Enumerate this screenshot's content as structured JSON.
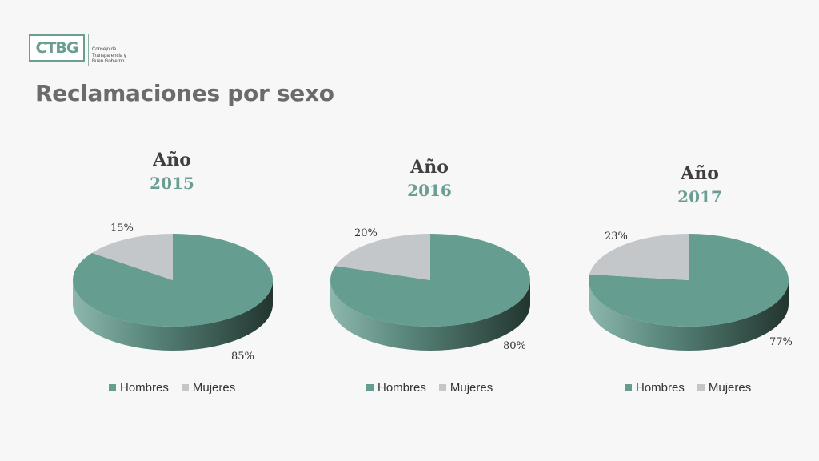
{
  "logo": {
    "letters": "CTBG",
    "lines": [
      "Consejo de",
      "Transparencia y",
      "Buen Gobierno"
    ]
  },
  "page_title": "Reclamaciones por sexo",
  "colors": {
    "hombres": "#669d91",
    "mujeres": "#c3c7c9"
  },
  "chart_data": [
    {
      "type": "pie",
      "title": "Año",
      "subtitle": "2015",
      "categories": [
        "Hombres",
        "Mujeres"
      ],
      "values": [
        85,
        15
      ],
      "labels": [
        "85%",
        "15%"
      ],
      "legend": "bottom"
    },
    {
      "type": "pie",
      "title": "Año",
      "subtitle": "2016",
      "categories": [
        "Hombres",
        "Mujeres"
      ],
      "values": [
        80,
        20
      ],
      "labels": [
        "80%",
        "20%"
      ],
      "legend": "bottom"
    },
    {
      "type": "pie",
      "title": "Año",
      "subtitle": "2017",
      "categories": [
        "Hombres",
        "Mujeres"
      ],
      "values": [
        77,
        23
      ],
      "labels": [
        "77%",
        "23%"
      ],
      "legend": "bottom"
    }
  ]
}
